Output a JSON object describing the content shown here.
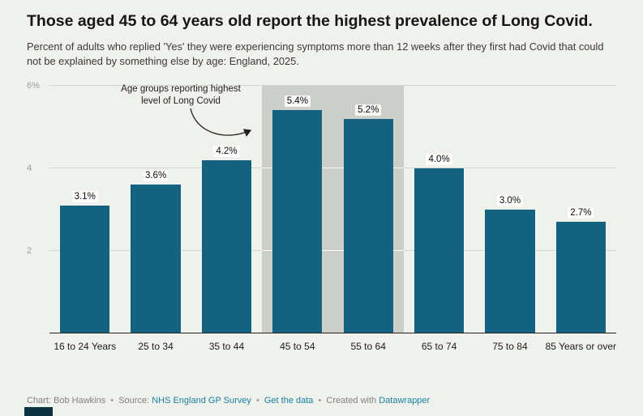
{
  "header": {},
  "chart_data": {
    "type": "bar",
    "title": "Those aged 45 to 64 years old report the highest prevalence of Long Covid.",
    "subtitle": "Percent of adults who replied 'Yes' they were experiencing symptoms more than 12 weeks after they first had Covid that could not be explained by something else by age: England, 2025.",
    "categories": [
      "16 to 24 Years",
      "25 to 34",
      "35 to 44",
      "45 to 54",
      "55 to 64",
      "65 to 74",
      "75 to 84",
      "85 Years or over"
    ],
    "values": [
      3.1,
      3.6,
      4.2,
      5.4,
      5.2,
      4.0,
      3.0,
      2.7
    ],
    "value_labels": [
      "3.1%",
      "3.6%",
      "4.2%",
      "5.4%",
      "5.2%",
      "4.0%",
      "3.0%",
      "2.7%"
    ],
    "xlabel": "",
    "ylabel": "",
    "ylim": [
      0,
      6
    ],
    "yticks": [
      {
        "value": 2,
        "label": "2"
      },
      {
        "value": 4,
        "label": "4"
      },
      {
        "value": 6,
        "label": "6%"
      }
    ],
    "grid": true,
    "legend": "none",
    "bar_color": "#14627f",
    "highlight": {
      "categories": [
        "45 to 54",
        "55 to 64"
      ],
      "from_index": 3,
      "to_index": 4,
      "color": "#cccfc9"
    },
    "annotation": {
      "lines": [
        "Age groups reporting highest",
        "level of Long Covid"
      ]
    }
  },
  "footer": {
    "credit": "Chart: Bob Hawkins",
    "separator": "•",
    "source_label": "Source:",
    "source_link": "NHS England GP Survey",
    "get_data_link": "Get the data",
    "created_with": "Created with",
    "datawrapper_link": "Datawrapper"
  },
  "colors": {
    "background": "#eef1ec",
    "bar": "#14627f",
    "highlight_band": "#cccfc9",
    "link": "#1d81a2",
    "corner_mark": "#0e3140"
  }
}
